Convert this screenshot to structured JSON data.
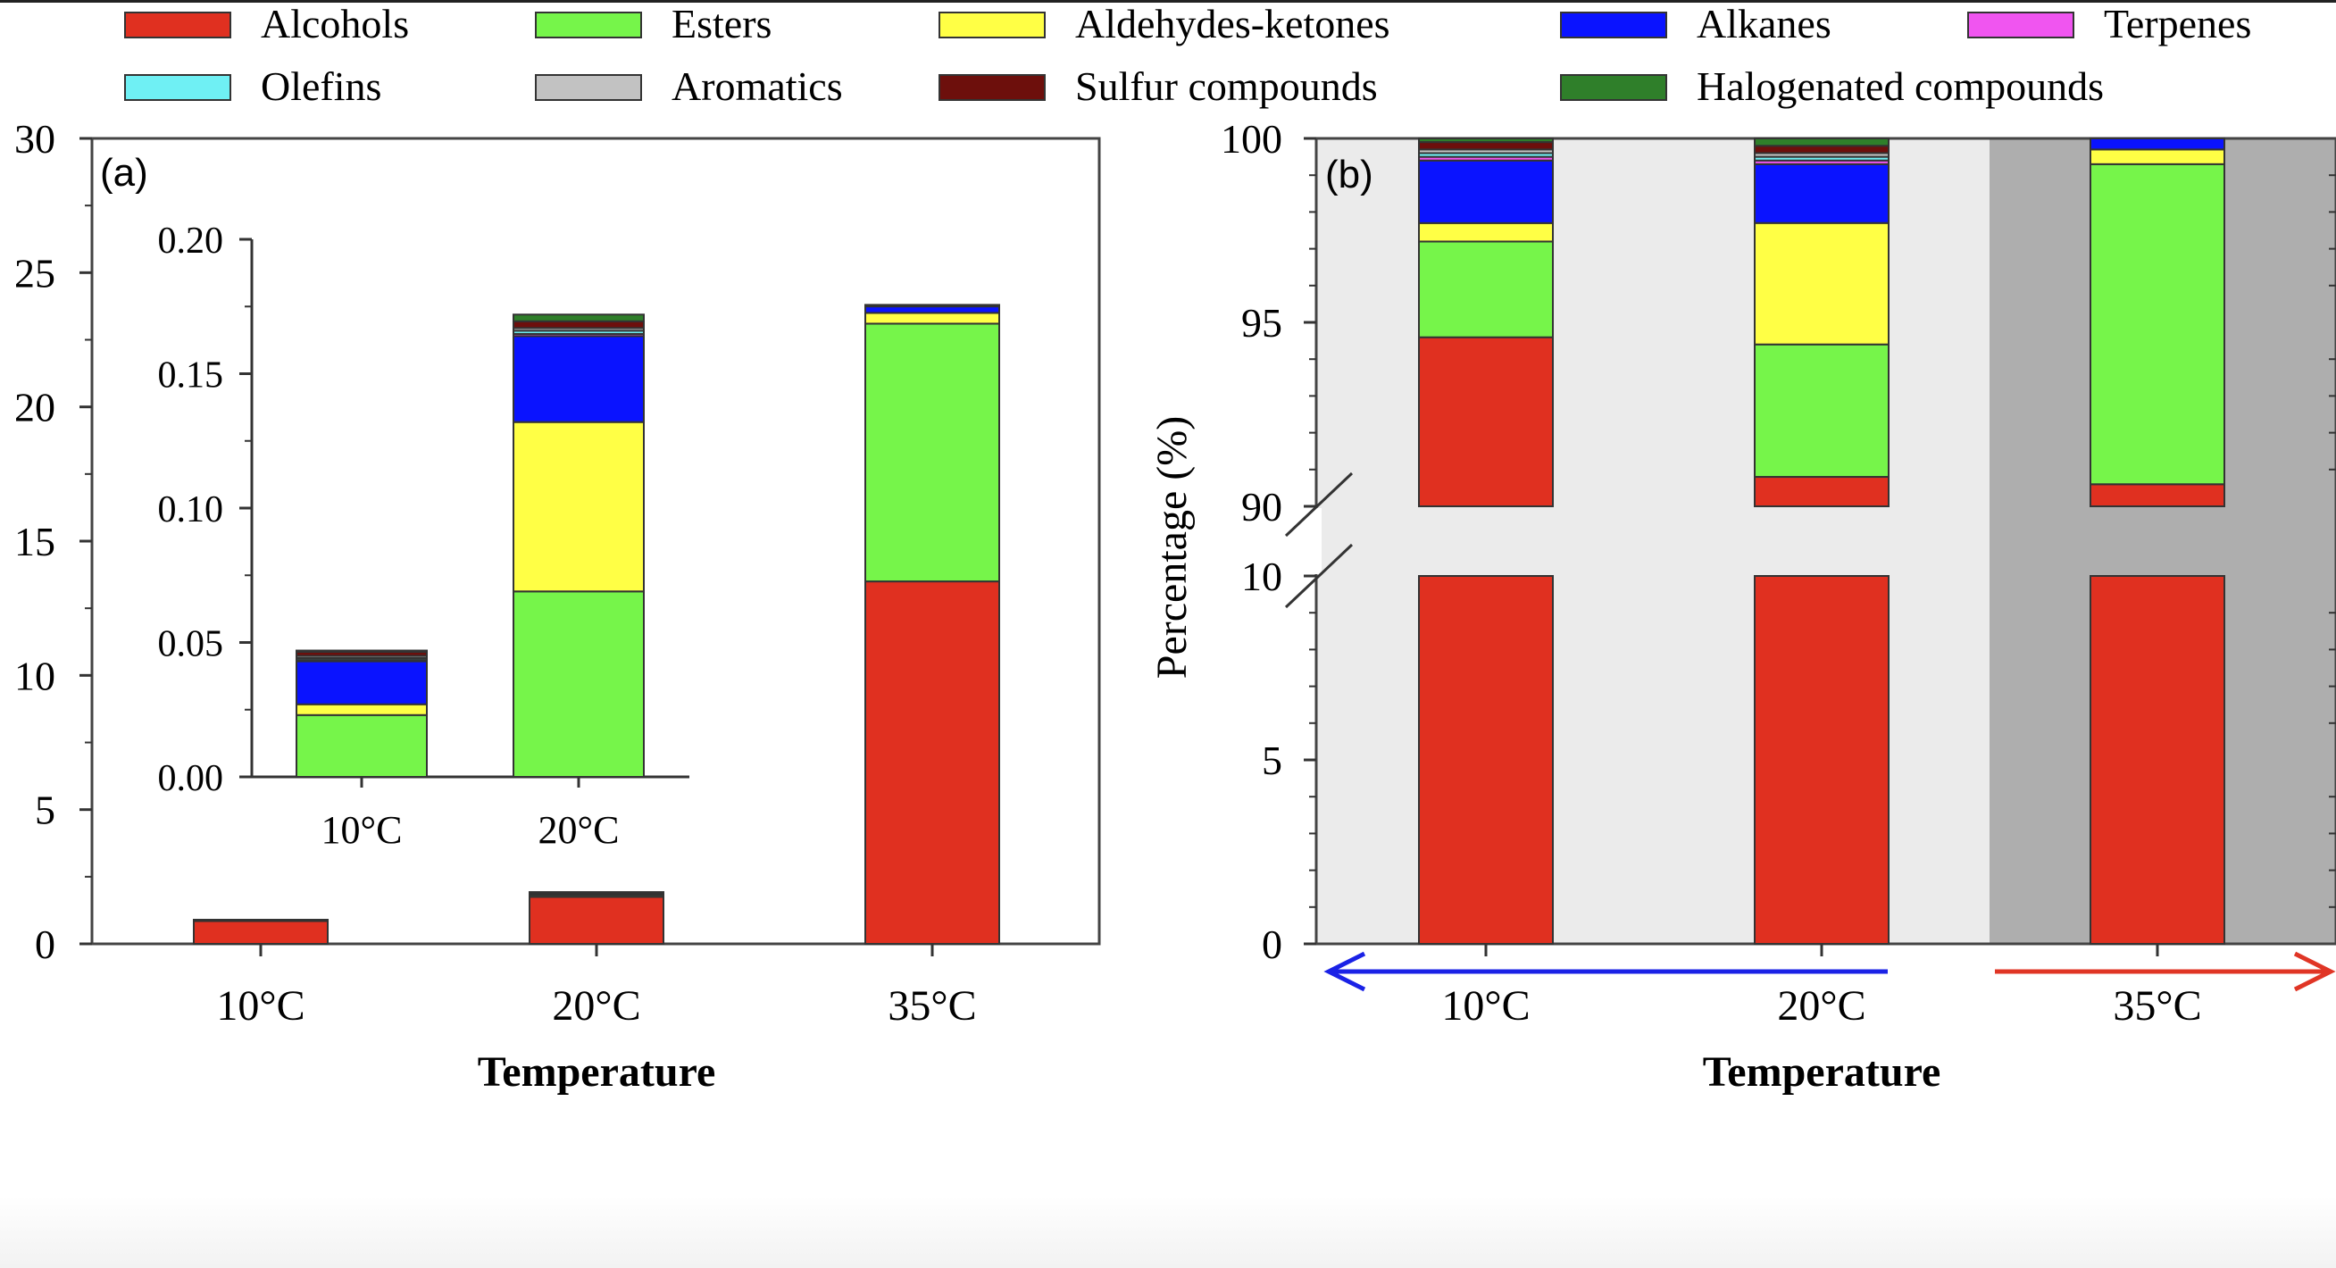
{
  "colors": {
    "Alcohols": "#e03020",
    "Esters": "#76f54a",
    "Aldehydes-ketones": "#ffff45",
    "Alkanes": "#0a13ff",
    "Terpenes": "#f055f0",
    "Olefins": "#6ff0f4",
    "Aromatics": "#c2c2c2",
    "Sulfur compounds": "#6d0f0c",
    "Halogenated compounds": "#2f7f2a",
    "shade_light": "#ebebeb",
    "shade_dark": "#aeaeae",
    "arrow_cool": "#1a22e6",
    "arrow_warm": "#e03525"
  },
  "legend": [
    "Alcohols",
    "Esters",
    "Aldehydes-ketones",
    "Alkanes",
    "Terpenes",
    "Olefins",
    "Aromatics",
    "Sulfur compounds",
    "Halogenated compounds"
  ],
  "chart_data": [
    {
      "panel": "(a)",
      "type": "bar",
      "stacked": true,
      "categories": [
        "10°C",
        "20°C",
        "35°C"
      ],
      "xlabel": "Temperature",
      "ylabel": "",
      "ylim": [
        0,
        30
      ],
      "yticks": [
        0,
        5,
        10,
        15,
        20,
        25,
        30
      ],
      "series": [
        {
          "name": "Alcohols",
          "values": [
            0.85,
            1.75,
            13.5
          ]
        },
        {
          "name": "Esters",
          "values": [
            0.025,
            0.07,
            9.6
          ]
        },
        {
          "name": "Aldehydes-ketones",
          "values": [
            0.004,
            0.063,
            0.4
          ]
        },
        {
          "name": "Alkanes",
          "values": [
            0.016,
            0.032,
            0.25
          ]
        },
        {
          "name": "Terpenes",
          "values": [
            0.0005,
            0.001,
            0.01
          ]
        },
        {
          "name": "Olefins",
          "values": [
            0.001,
            0.002,
            0.01
          ]
        },
        {
          "name": "Aromatics",
          "values": [
            0.0005,
            0.001,
            0.01
          ]
        },
        {
          "name": "Sulfur compounds",
          "values": [
            0.001,
            0.003,
            0.01
          ]
        },
        {
          "name": "Halogenated compounds",
          "values": [
            0.0005,
            0.003,
            0.01
          ]
        }
      ]
    },
    {
      "panel": "(a) inset",
      "type": "bar",
      "stacked": true,
      "categories": [
        "10°C",
        "20°C"
      ],
      "ylim": [
        0,
        0.2
      ],
      "yticks": [
        "0.00",
        "0.05",
        "0.10",
        "0.15",
        "0.20"
      ],
      "series": [
        {
          "name": "Esters",
          "values": [
            0.023,
            0.069
          ]
        },
        {
          "name": "Aldehydes-ketones",
          "values": [
            0.004,
            0.063
          ]
        },
        {
          "name": "Alkanes",
          "values": [
            0.016,
            0.032
          ]
        },
        {
          "name": "Terpenes",
          "values": [
            0.0005,
            0.0008
          ]
        },
        {
          "name": "Olefins",
          "values": [
            0.0007,
            0.0012
          ]
        },
        {
          "name": "Aromatics",
          "values": [
            0.0008,
            0.001
          ]
        },
        {
          "name": "Sulfur compounds",
          "values": [
            0.0015,
            0.0025
          ]
        },
        {
          "name": "Halogenated compounds",
          "values": [
            0.0005,
            0.0025
          ]
        }
      ]
    },
    {
      "panel": "(b)",
      "type": "bar",
      "stacked": true,
      "categories": [
        "10°C",
        "20°C",
        "35°C"
      ],
      "xlabel": "Temperature",
      "ylabel": "Percentage (%)",
      "axis_break": [
        10,
        90
      ],
      "ylim": [
        0,
        100
      ],
      "yticks": [
        0,
        5,
        10,
        90,
        95,
        100
      ],
      "series": [
        {
          "name": "Alcohols",
          "values": [
            94.5,
            90.8,
            90.6
          ]
        },
        {
          "name": "Esters",
          "values": [
            2.6,
            3.6,
            8.7
          ]
        },
        {
          "name": "Aldehydes-ketones",
          "values": [
            0.5,
            3.3,
            0.4
          ]
        },
        {
          "name": "Alkanes",
          "values": [
            1.7,
            1.6,
            0.3
          ]
        },
        {
          "name": "Terpenes",
          "values": [
            0.1,
            0.1,
            0
          ]
        },
        {
          "name": "Olefins",
          "values": [
            0.1,
            0.1,
            0
          ]
        },
        {
          "name": "Aromatics",
          "values": [
            0.1,
            0.1,
            0
          ]
        },
        {
          "name": "Sulfur compounds",
          "values": [
            0.2,
            0.2,
            0
          ]
        },
        {
          "name": "Halogenated compounds",
          "values": [
            0.1,
            0.2,
            0
          ]
        }
      ]
    }
  ]
}
